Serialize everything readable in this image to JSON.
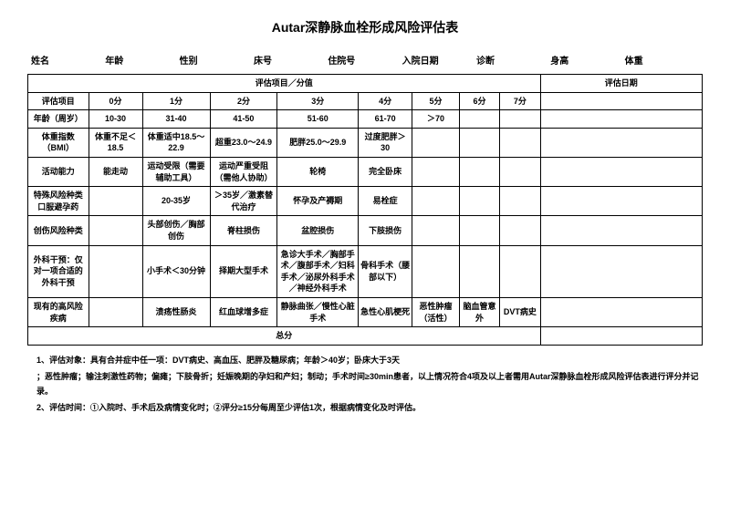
{
  "title": "Autar深静脉血栓形成风险评估表",
  "patient_fields": [
    "姓名",
    "年龄",
    "性别",
    "床号",
    "住院号",
    "入院日期",
    "诊断",
    "身高",
    "体重"
  ],
  "header_mid": "评估项目／分值",
  "header_date": "评估日期",
  "score_headers": [
    "评估项目",
    "0分",
    "1分",
    "2分",
    "3分",
    "4分",
    "5分",
    "6分",
    "7分"
  ],
  "rows": [
    {
      "item": "年龄（周岁）",
      "s0": "10-30",
      "s1": "31-40",
      "s2": "41-50",
      "s3": "51-60",
      "s4": "61-70",
      "s5": "＞70",
      "s6": "",
      "s7": ""
    },
    {
      "item": "体重指数（BMI）",
      "s0": "体重不足＜18.5",
      "s1": "体重适中18.5～22.9",
      "s2": "超重23.0～24.9",
      "s3": "肥胖25.0～29.9",
      "s4": "过度肥胖＞30",
      "s5": "",
      "s6": "",
      "s7": ""
    },
    {
      "item": "活动能力",
      "s0": "能走动",
      "s1": "运动受限（需要辅助工具）",
      "s2": "运动严重受阻（需他人协助）",
      "s3": "轮椅",
      "s4": "完全卧床",
      "s5": "",
      "s6": "",
      "s7": ""
    },
    {
      "item": "特殊风险种类口服避孕药",
      "s0": "",
      "s1": "20-35岁",
      "s2": "＞35岁／激素替代治疗",
      "s3": "怀孕及产褥期",
      "s4": "易栓症",
      "s5": "",
      "s6": "",
      "s7": ""
    },
    {
      "item": "创伤风险种类",
      "s0": "",
      "s1": "头部创伤／胸部创伤",
      "s2": "脊柱损伤",
      "s3": "盆腔损伤",
      "s4": "下肢损伤",
      "s5": "",
      "s6": "",
      "s7": ""
    },
    {
      "item": "外科干预：仅对一项合适的外科干预",
      "s0": "",
      "s1": "小手术＜30分钟",
      "s2": "择期大型手术",
      "s3": "急诊大手术／胸部手术／腹部手术／妇科手术／泌尿外科手术／神经外科手术",
      "s4": "骨科手术（腰部以下）",
      "s5": "",
      "s6": "",
      "s7": ""
    },
    {
      "item": "现有的高风险疾病",
      "s0": "",
      "s1": "溃疡性肠炎",
      "s2": "红血球增多症",
      "s3": "静脉曲张／慢性心脏手术",
      "s4": "急性心肌梗死",
      "s5": "恶性肿瘤（活性）",
      "s6": "脑血管意外",
      "s7": "DVT病史"
    }
  ],
  "total_label": "总分",
  "notes": [
    "1、评估对象：具有合并症中任一项：DVT病史、高血压、肥胖及糖尿病；年龄＞40岁；卧床大于3天",
    "；恶性肿瘤；输注刺激性药物；偏瘫；下肢骨折；妊娠晚期的孕妇和产妇；制动；手术时间≥30min患者，以上情况符合4项及以上者需用Autar深静脉血栓形成风险评估表进行评分并记录。",
    "2、评估时间：①入院时、手术后及病情变化时；②评分≥15分每周至少评估1次，根据病情变化及时评估。"
  ]
}
